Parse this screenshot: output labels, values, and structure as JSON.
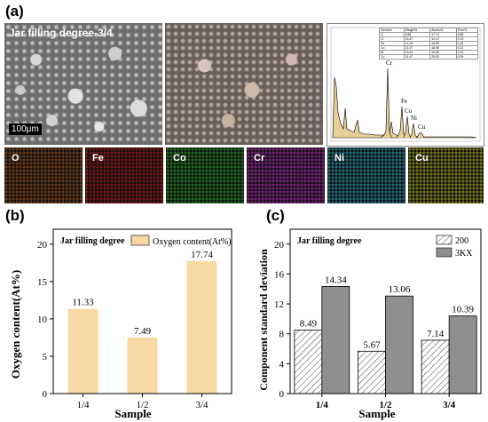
{
  "panel_a": {
    "letter": "(a)",
    "sem_title": "Jar filling degree-3/4",
    "scale_bar": "100μm",
    "eds_peaks": [
      "Cr",
      "Fe",
      "Co",
      "Ni",
      "Cu"
    ],
    "eds_table": {
      "headers": [
        "Element",
        "Weight%",
        "Atomic%",
        "Error%"
      ],
      "rows": [
        [
          "O",
          "5.56",
          "17.74",
          "8.88"
        ],
        [
          "Cr",
          "14.47",
          "14.12",
          "0.13"
        ],
        [
          "Fe",
          "14.19",
          "13.99",
          "0.18"
        ],
        [
          "Co",
          "21.07",
          "18.96",
          "0.22"
        ],
        [
          "Ni",
          "13.24",
          "19.65",
          "0.23"
        ],
        [
          "Cu",
          "31.47",
          "25.53",
          "0.39"
        ]
      ]
    },
    "map_labels": [
      "O",
      "Fe",
      "Co",
      "Cr",
      "Ni",
      "Cu"
    ],
    "map_colors": [
      "#6b3a12",
      "#7a1414",
      "#1d6e1d",
      "#7e1f7e",
      "#1c6f7e",
      "#7a7a18"
    ]
  },
  "chart_data": [
    {
      "type": "bar",
      "panel": "(b)",
      "annotation": "Jar filling degree",
      "categories": [
        "1/4",
        "1/2",
        "3/4"
      ],
      "series": [
        {
          "name": "Oxygen content(At%)",
          "values": [
            11.33,
            7.49,
            17.74
          ],
          "color": "#f9d9a3"
        }
      ],
      "data_labels": [
        "11.33",
        "7.49",
        "17.74"
      ],
      "xlabel": "Sample",
      "ylabel": "Oxygen content(At%)",
      "ylim": [
        0,
        22
      ],
      "yticks": [
        "0",
        "5",
        "10",
        "15",
        "20"
      ],
      "grid": false,
      "legend": "top-right"
    },
    {
      "type": "bar",
      "panel": "(c)",
      "annotation": "Jar filling degree",
      "categories": [
        "1/4",
        "1/2",
        "3/4"
      ],
      "series": [
        {
          "name": "200",
          "values": [
            8.49,
            5.67,
            7.14
          ],
          "pattern": "hatched"
        },
        {
          "name": "3KX",
          "values": [
            14.34,
            13.06,
            10.39
          ],
          "color": "#8f8f8f"
        }
      ],
      "data_labels": [
        [
          "8.49",
          "5.67",
          "7.14"
        ],
        [
          "14.34",
          "13.06",
          "10.39"
        ]
      ],
      "xlabel": "Sample",
      "ylabel": "Component standard deviation",
      "ylim": [
        0,
        22
      ],
      "yticks": [
        "0",
        "4",
        "8",
        "12",
        "16",
        "20"
      ],
      "grid": false,
      "legend": "top-right"
    }
  ]
}
